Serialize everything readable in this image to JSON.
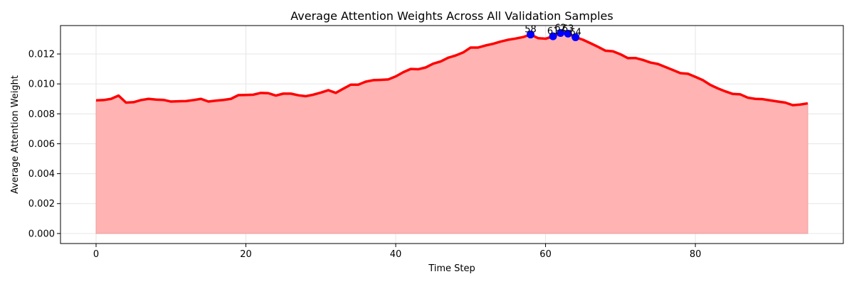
{
  "chart_data": {
    "type": "area",
    "title": "Average Attention Weights Across All Validation Samples",
    "xlabel": "Time Step",
    "ylabel": "Average Attention Weight",
    "xlim": [
      -4.75,
      99.75
    ],
    "ylim": [
      -0.00067,
      0.0139
    ],
    "xticks": [
      0,
      20,
      40,
      60,
      80
    ],
    "xtick_labels": [
      "0",
      "20",
      "40",
      "60",
      "80"
    ],
    "yticks": [
      0.0,
      0.002,
      0.004,
      0.006,
      0.008,
      0.01,
      0.012
    ],
    "ytick_labels": [
      "0.000",
      "0.002",
      "0.004",
      "0.006",
      "0.008",
      "0.010",
      "0.012"
    ],
    "grid": true,
    "line_color": "#ff0000",
    "fill_color": "#ffb3b3",
    "marker_color": "#0000ff",
    "series": [
      {
        "x": [
          0,
          1,
          2,
          3,
          4,
          5,
          6,
          7,
          8,
          9,
          10,
          11,
          12,
          13,
          14,
          15,
          16,
          17,
          18,
          19,
          20,
          21,
          22,
          23,
          24,
          25,
          26,
          27,
          28,
          29,
          30,
          31,
          32,
          33,
          34,
          35,
          36,
          37,
          38,
          39,
          40,
          41,
          42,
          43,
          44,
          45,
          46,
          47,
          48,
          49,
          50,
          51,
          52,
          53,
          54,
          55,
          56,
          57,
          58,
          59,
          60,
          61,
          62,
          63,
          64,
          65,
          66,
          67,
          68,
          69,
          70,
          71,
          72,
          73,
          74,
          75,
          76,
          77,
          78,
          79,
          80,
          81,
          82,
          83,
          84,
          85,
          86,
          87,
          88,
          89,
          90,
          91,
          92,
          93,
          94,
          95
        ],
        "values": [
          0.0089,
          0.00892,
          0.009,
          0.00922,
          0.00875,
          0.00878,
          0.00892,
          0.009,
          0.00895,
          0.00893,
          0.00882,
          0.00884,
          0.00885,
          0.00892,
          0.009,
          0.00882,
          0.00888,
          0.00893,
          0.009,
          0.00925,
          0.00926,
          0.00928,
          0.0094,
          0.00938,
          0.00922,
          0.00935,
          0.00935,
          0.00924,
          0.00918,
          0.00928,
          0.00942,
          0.00958,
          0.0094,
          0.00968,
          0.00995,
          0.00995,
          0.01015,
          0.01025,
          0.01027,
          0.0103,
          0.0105,
          0.01078,
          0.011,
          0.01098,
          0.0111,
          0.01135,
          0.0115,
          0.01175,
          0.0119,
          0.0121,
          0.01243,
          0.01243,
          0.01257,
          0.01268,
          0.01283,
          0.01295,
          0.01303,
          0.01313,
          0.0133,
          0.01306,
          0.01302,
          0.01318,
          0.0134,
          0.01336,
          0.01312,
          0.01295,
          0.01272,
          0.01248,
          0.01222,
          0.01218,
          0.01198,
          0.01172,
          0.01173,
          0.0116,
          0.01143,
          0.01133,
          0.01113,
          0.01093,
          0.01072,
          0.01068,
          0.01047,
          0.01025,
          0.00993,
          0.0097,
          0.0095,
          0.00933,
          0.0093,
          0.00908,
          0.009,
          0.00898,
          0.0089,
          0.00882,
          0.00875,
          0.00858,
          0.00862,
          0.0087
        ]
      }
    ],
    "highlighted_points": [
      {
        "x": 58,
        "y": 0.0133,
        "label": "58"
      },
      {
        "x": 61,
        "y": 0.01318,
        "label": "61"
      },
      {
        "x": 62,
        "y": 0.0134,
        "label": "62"
      },
      {
        "x": 63,
        "y": 0.01336,
        "label": "63"
      },
      {
        "x": 64,
        "y": 0.01312,
        "label": "64"
      }
    ]
  }
}
